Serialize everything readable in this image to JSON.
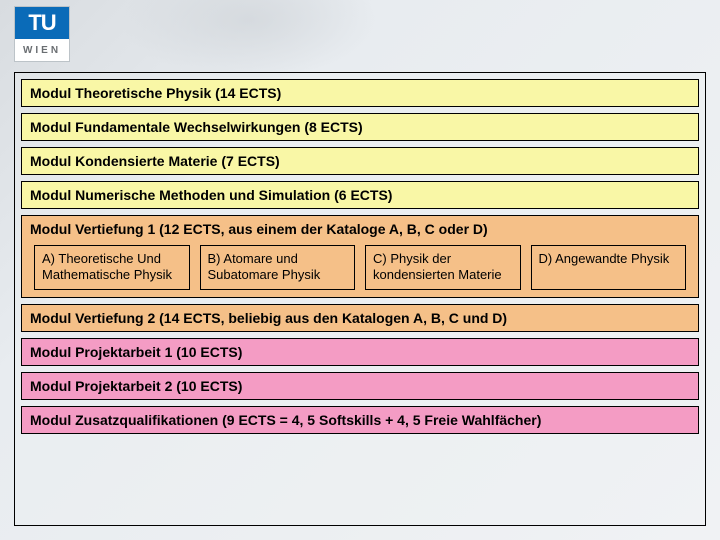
{
  "logo": {
    "top": "TU",
    "bottom": "WIEN"
  },
  "colors": {
    "yellow": "#f9f7a6",
    "orange": "#f5c088",
    "pink": "#f49cc4",
    "border": "#000000",
    "logo_blue": "#0a6bb8"
  },
  "modules": [
    {
      "label": "Modul Theoretische Physik (14 ECTS)",
      "color": "yellow"
    },
    {
      "label": "Modul Fundamentale Wechselwirkungen (8 ECTS)",
      "color": "yellow"
    },
    {
      "label": "Modul Kondensierte Materie (7 ECTS)",
      "color": "yellow"
    },
    {
      "label": "Modul Numerische Methoden und Simulation (6 ECTS)",
      "color": "yellow"
    }
  ],
  "vertiefung1": {
    "title": "Modul Vertiefung 1 (12 ECTS, aus einem der Kataloge A, B, C oder D)",
    "options": [
      "A) Theoretische Und Mathematische Physik",
      "B) Atomare und Subatomare Physik",
      "C) Physik der kondensierten Materie",
      "D) Angewandte Physik"
    ],
    "color": "orange"
  },
  "tail": [
    {
      "label": "Modul Vertiefung 2 (14 ECTS, beliebig aus den Katalogen A, B, C und D)",
      "color": "orange"
    },
    {
      "label": "Modul Projektarbeit 1 (10 ECTS)",
      "color": "pink"
    },
    {
      "label": "Modul Projektarbeit 2 (10 ECTS)",
      "color": "pink"
    },
    {
      "label": "Modul Zusatzqualifikationen (9 ECTS = 4, 5 Softskills + 4, 5 Freie Wahlfächer)",
      "color": "pink"
    }
  ]
}
